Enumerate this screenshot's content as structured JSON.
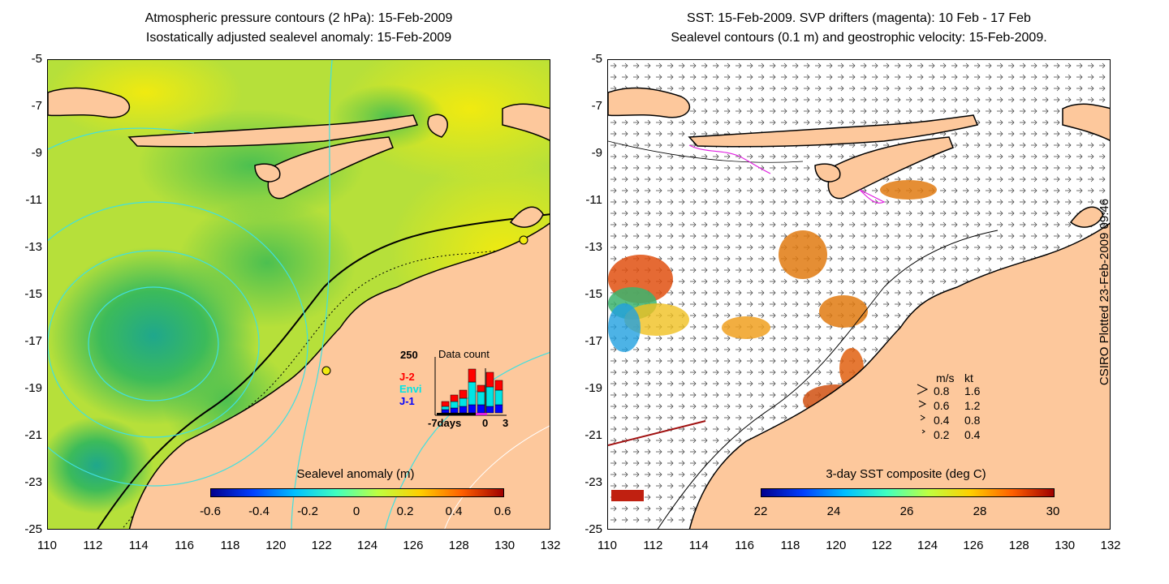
{
  "left_panel": {
    "title_line1": "Atmospheric pressure contours (2 hPa): 15-Feb-2009",
    "title_line2": "Isostatically adjusted sealevel anomaly: 15-Feb-2009",
    "colorbar": {
      "label": "Sealevel anomaly (m)",
      "ticks": [
        "-0.6",
        "-0.4",
        "-0.2",
        "0",
        "0.2",
        "0.4",
        "0.6"
      ]
    },
    "inset": {
      "title": "Data count",
      "y_max_label": "250",
      "x_left_label": "-7days",
      "x_mid_label": "0",
      "x_right_label": "3",
      "legend": [
        {
          "label": "J-2",
          "color": "#ff0000"
        },
        {
          "label": "Envi",
          "color": "#00e5e5"
        },
        {
          "label": "J-1",
          "color": "#0000ff"
        }
      ],
      "bars": [
        {
          "j1": 10,
          "envi": 10,
          "j2": 15
        },
        {
          "j1": 15,
          "envi": 20,
          "j2": 20
        },
        {
          "j1": 20,
          "envi": 25,
          "j2": 25
        },
        {
          "j1": 25,
          "envi": 70,
          "j2": 40
        },
        {
          "j1": 25,
          "envi": 40,
          "j2": 20
        },
        {
          "j1": 20,
          "envi": 60,
          "j2": 45
        },
        {
          "j1": 25,
          "envi": 45,
          "j2": 30
        }
      ]
    }
  },
  "right_panel": {
    "title_line1": "SST: 15-Feb-2009. SVP drifters (magenta): 10 Feb - 17 Feb",
    "title_line2": "Sealevel contours (0.1 m) and geostrophic velocity: 15-Feb-2009.",
    "colorbar": {
      "label": "3-day SST composite (deg C)",
      "ticks": [
        "22",
        "24",
        "26",
        "28",
        "30"
      ]
    },
    "velocity_legend": {
      "header_ms": "m/s",
      "header_kt": "kt",
      "rows": [
        {
          "ms": "0.8",
          "kt": "1.6"
        },
        {
          "ms": "0.6",
          "kt": "1.2"
        },
        {
          "ms": "0.4",
          "kt": "0.8"
        },
        {
          "ms": "0.2",
          "kt": "0.4"
        }
      ]
    }
  },
  "axes": {
    "lat_labels": [
      "-5",
      "-7",
      "-9",
      "-11",
      "-13",
      "-15",
      "-17",
      "-19",
      "-21",
      "-23",
      "-25"
    ],
    "lon_labels": [
      "110",
      "112",
      "114",
      "116",
      "118",
      "120",
      "122",
      "124",
      "126",
      "128",
      "130",
      "132"
    ]
  },
  "credit": "CSIRO Plotted 23-Feb-2009 09:46",
  "colors": {
    "land": "#fdc89c",
    "ocean_base": "#c8e63c",
    "anomaly_low": "#3cb96e",
    "contour": "#40e0e0",
    "coast": "#000000",
    "drifter": "#e020e0"
  }
}
